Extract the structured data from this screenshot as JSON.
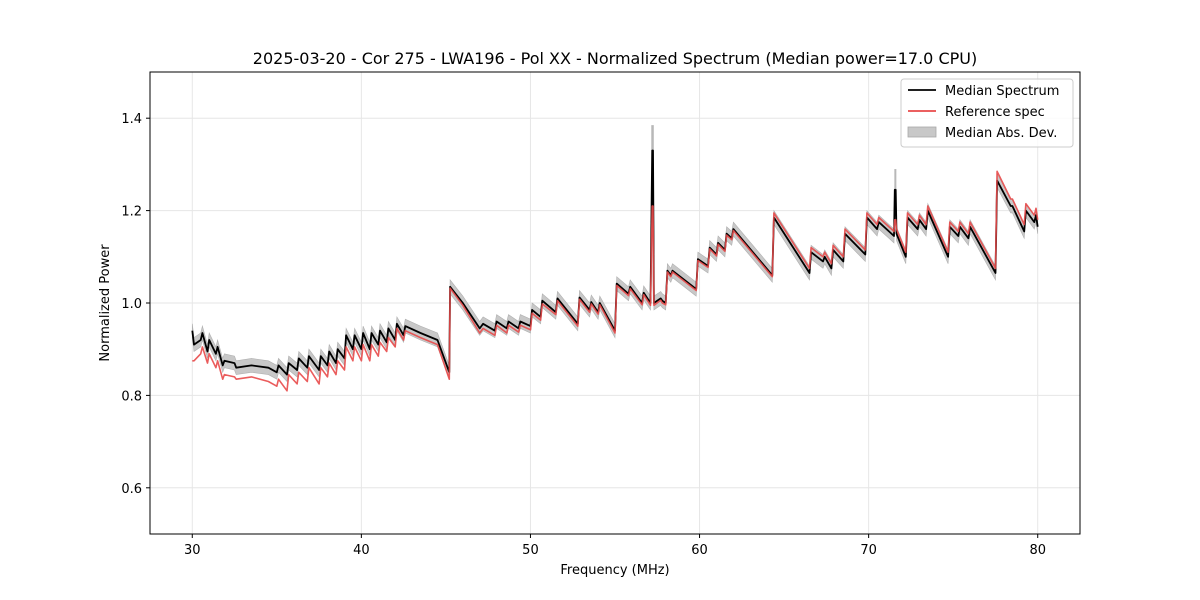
{
  "chart_data": {
    "type": "line",
    "title": "2025-03-20 - Cor 275 - LWA196 - Pol XX - Normalized Spectrum (Median power=17.0 CPU)",
    "xlabel": "Frequency (MHz)",
    "ylabel": "Normalized Power",
    "xlim": [
      27.5,
      82.5
    ],
    "ylim": [
      0.5,
      1.5
    ],
    "xticks": [
      30,
      40,
      50,
      60,
      70,
      80
    ],
    "yticks": [
      0.6,
      0.8,
      1.0,
      1.2,
      1.4
    ],
    "grid": true,
    "legend_position": "top-right",
    "legend": [
      {
        "label": "Median Spectrum",
        "kind": "line",
        "color": "#000000"
      },
      {
        "label": "Reference spec",
        "kind": "line",
        "color": "#e84a4a"
      },
      {
        "label": "Median Abs. Dev.",
        "kind": "patch",
        "color": "#c8c8c8"
      }
    ],
    "mad_half_width": 0.015,
    "series": [
      {
        "name": "Median Spectrum",
        "color": "#000000",
        "x": [
          30.0,
          30.1,
          30.5,
          30.6,
          30.9,
          31.0,
          31.4,
          31.5,
          31.8,
          31.9,
          32.5,
          32.6,
          33.5,
          34.5,
          35.0,
          35.1,
          35.6,
          35.7,
          36.2,
          36.3,
          36.8,
          36.9,
          37.5,
          37.6,
          38.0,
          38.1,
          38.5,
          38.6,
          39.0,
          39.1,
          39.5,
          39.6,
          40.0,
          40.1,
          40.5,
          40.6,
          41.0,
          41.1,
          41.5,
          41.6,
          42.0,
          42.1,
          42.5,
          42.6,
          43.5,
          44.5,
          45.2,
          45.25,
          46.0,
          47.0,
          47.2,
          47.9,
          48.0,
          48.6,
          48.7,
          49.3,
          49.4,
          50.0,
          50.1,
          50.6,
          50.7,
          51.5,
          51.6,
          52.8,
          52.9,
          53.5,
          53.6,
          54.0,
          54.1,
          55.0,
          55.1,
          55.8,
          55.9,
          56.6,
          56.7,
          57.1,
          57.2,
          57.25,
          57.3,
          57.7,
          57.8,
          58.0,
          58.1,
          58.3,
          58.4,
          59.8,
          59.9,
          60.5,
          60.6,
          61.0,
          61.1,
          61.5,
          61.6,
          61.9,
          62.0,
          64.3,
          64.4,
          66.5,
          66.6,
          67.3,
          67.4,
          67.8,
          67.9,
          68.5,
          68.6,
          69.8,
          69.9,
          70.5,
          70.6,
          71.5,
          71.55,
          71.6,
          71.65,
          72.2,
          72.3,
          72.9,
          73.0,
          73.4,
          73.5,
          74.7,
          74.8,
          75.3,
          75.4,
          75.9,
          76.0,
          77.5,
          77.6,
          78.4,
          78.5,
          79.2,
          79.3,
          79.8,
          79.9,
          80.0
        ],
        "y": [
          0.94,
          0.91,
          0.92,
          0.935,
          0.895,
          0.92,
          0.89,
          0.905,
          0.865,
          0.875,
          0.87,
          0.86,
          0.865,
          0.86,
          0.85,
          0.865,
          0.845,
          0.87,
          0.855,
          0.88,
          0.86,
          0.885,
          0.855,
          0.885,
          0.865,
          0.895,
          0.87,
          0.9,
          0.88,
          0.93,
          0.9,
          0.93,
          0.9,
          0.935,
          0.9,
          0.935,
          0.91,
          0.94,
          0.915,
          0.945,
          0.92,
          0.955,
          0.93,
          0.95,
          0.935,
          0.92,
          0.85,
          1.035,
          1.0,
          0.945,
          0.955,
          0.94,
          0.96,
          0.945,
          0.96,
          0.945,
          0.96,
          0.95,
          0.985,
          0.97,
          1.005,
          0.98,
          1.01,
          0.955,
          1.012,
          0.985,
          1.002,
          0.98,
          1.0,
          0.94,
          1.042,
          1.02,
          1.035,
          1.0,
          1.022,
          1.0,
          1.33,
          1.33,
          1.0,
          1.01,
          1.005,
          1.0,
          1.07,
          1.06,
          1.07,
          1.03,
          1.095,
          1.08,
          1.12,
          1.105,
          1.13,
          1.115,
          1.15,
          1.14,
          1.16,
          1.06,
          1.185,
          1.065,
          1.11,
          1.09,
          1.1,
          1.075,
          1.115,
          1.09,
          1.15,
          1.105,
          1.185,
          1.16,
          1.175,
          1.145,
          1.245,
          1.245,
          1.15,
          1.1,
          1.185,
          1.16,
          1.18,
          1.16,
          1.2,
          1.1,
          1.165,
          1.145,
          1.165,
          1.14,
          1.165,
          1.065,
          1.265,
          1.21,
          1.21,
          1.155,
          1.2,
          1.175,
          1.19,
          1.165
        ]
      },
      {
        "name": "Reference spec",
        "color": "#e84a4a",
        "x": [
          30.0,
          30.1,
          30.5,
          30.6,
          30.9,
          31.0,
          31.4,
          31.5,
          31.8,
          31.9,
          32.5,
          32.6,
          33.5,
          34.5,
          35.0,
          35.1,
          35.6,
          35.7,
          36.2,
          36.3,
          36.8,
          36.9,
          37.5,
          37.6,
          38.0,
          38.1,
          38.5,
          38.6,
          39.0,
          39.1,
          39.5,
          39.6,
          40.0,
          40.1,
          40.5,
          40.6,
          41.0,
          41.1,
          41.5,
          41.6,
          42.0,
          42.1,
          42.5,
          42.6,
          43.5,
          44.5,
          45.2,
          45.25,
          46.0,
          47.0,
          47.2,
          47.9,
          48.0,
          48.6,
          48.7,
          49.3,
          49.4,
          50.0,
          50.1,
          50.6,
          50.7,
          51.5,
          51.6,
          52.8,
          52.9,
          53.5,
          53.6,
          54.0,
          54.1,
          55.0,
          55.1,
          55.8,
          55.9,
          56.6,
          56.7,
          57.1,
          57.2,
          57.25,
          57.3,
          57.7,
          57.8,
          58.0,
          58.1,
          58.3,
          58.4,
          59.8,
          59.9,
          60.5,
          60.6,
          61.0,
          61.1,
          61.5,
          61.6,
          61.9,
          62.0,
          64.3,
          64.4,
          66.5,
          66.6,
          67.3,
          67.4,
          67.8,
          67.9,
          68.5,
          68.6,
          69.8,
          69.9,
          70.5,
          70.6,
          71.5,
          71.55,
          71.6,
          71.65,
          72.2,
          72.3,
          72.9,
          73.0,
          73.4,
          73.5,
          74.7,
          74.8,
          75.3,
          75.4,
          75.9,
          76.0,
          77.5,
          77.6,
          78.4,
          78.5,
          79.2,
          79.3,
          79.8,
          79.9,
          80.0
        ],
        "y": [
          0.875,
          0.875,
          0.89,
          0.905,
          0.87,
          0.89,
          0.86,
          0.875,
          0.835,
          0.845,
          0.84,
          0.835,
          0.84,
          0.83,
          0.82,
          0.835,
          0.81,
          0.845,
          0.825,
          0.85,
          0.83,
          0.86,
          0.825,
          0.86,
          0.84,
          0.87,
          0.845,
          0.875,
          0.855,
          0.905,
          0.875,
          0.905,
          0.875,
          0.91,
          0.875,
          0.91,
          0.885,
          0.915,
          0.895,
          0.925,
          0.905,
          0.945,
          0.92,
          0.94,
          0.925,
          0.91,
          0.835,
          1.032,
          0.995,
          0.935,
          0.945,
          0.93,
          0.952,
          0.935,
          0.952,
          0.937,
          0.952,
          0.942,
          0.978,
          0.963,
          0.998,
          0.975,
          1.005,
          0.95,
          1.008,
          0.98,
          0.998,
          0.976,
          0.996,
          0.935,
          1.038,
          1.016,
          1.031,
          0.996,
          1.018,
          0.995,
          1.21,
          1.21,
          0.995,
          1.006,
          1.0,
          0.996,
          1.067,
          1.057,
          1.067,
          1.027,
          1.092,
          1.077,
          1.117,
          1.102,
          1.127,
          1.112,
          1.147,
          1.137,
          1.157,
          1.057,
          1.195,
          1.075,
          1.12,
          1.1,
          1.11,
          1.085,
          1.125,
          1.1,
          1.16,
          1.115,
          1.195,
          1.17,
          1.185,
          1.155,
          1.18,
          1.18,
          1.16,
          1.11,
          1.195,
          1.17,
          1.19,
          1.17,
          1.21,
          1.11,
          1.175,
          1.155,
          1.175,
          1.15,
          1.175,
          1.075,
          1.285,
          1.225,
          1.225,
          1.17,
          1.215,
          1.19,
          1.205,
          1.18
        ]
      }
    ]
  }
}
